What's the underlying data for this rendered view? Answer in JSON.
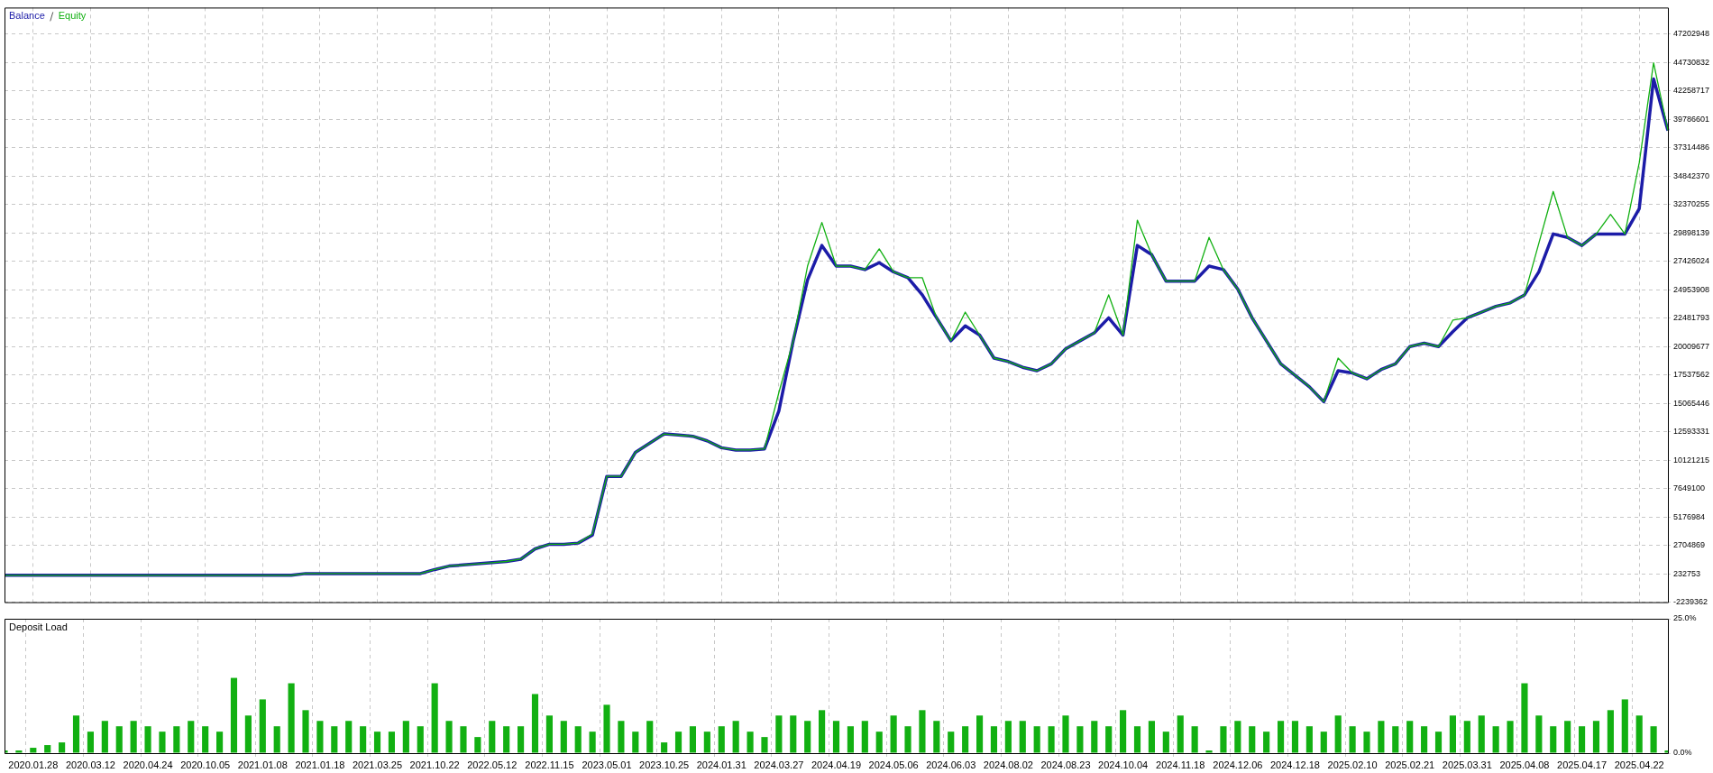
{
  "chart_data": [
    {
      "type": "line",
      "categories": [
        null,
        null,
        "2020.01.28",
        null,
        null,
        null,
        "2020.03.12",
        null,
        null,
        null,
        "2020.04.24",
        null,
        null,
        null,
        "2020.10.05",
        null,
        null,
        null,
        "2021.01.08",
        null,
        null,
        null,
        "2021.01.18",
        null,
        null,
        null,
        "2021.03.25",
        null,
        null,
        null,
        "2021.10.22",
        null,
        null,
        null,
        "2022.05.12",
        null,
        null,
        null,
        "2022.11.15",
        null,
        null,
        null,
        "2023.05.01",
        null,
        null,
        null,
        "2023.10.25",
        null,
        null,
        null,
        "2024.01.31",
        null,
        null,
        null,
        "2024.03.27",
        null,
        null,
        null,
        "2024.04.19",
        null,
        null,
        null,
        "2024.05.06",
        null,
        null,
        null,
        "2024.06.03",
        null,
        null,
        null,
        "2024.08.02",
        null,
        null,
        null,
        "2024.08.23",
        null,
        null,
        null,
        "2024.10.04",
        null,
        null,
        null,
        "2024.11.18",
        null,
        null,
        null,
        "2024.12.06",
        null,
        null,
        null,
        "2024.12.18",
        null,
        null,
        null,
        "2025.02.10",
        null,
        null,
        null,
        "2025.02.21",
        null,
        null,
        null,
        "2025.03.31",
        null,
        null,
        null,
        "2025.04.08",
        null,
        null,
        null,
        "2025.04.17",
        null,
        null,
        null,
        "2025.04.22",
        null,
        null
      ],
      "series": [
        {
          "name": "Balance",
          "color": "#1c1ca8",
          "values": [
            100000,
            100000,
            100000,
            100000,
            100000,
            100000,
            100000,
            100000,
            100000,
            100000,
            100000,
            100000,
            100000,
            100000,
            100000,
            100000,
            100000,
            100000,
            100000,
            100000,
            100000,
            250000,
            250000,
            250000,
            250000,
            250000,
            250000,
            250000,
            250000,
            250000,
            600000,
            900000,
            1000000,
            1100000,
            1200000,
            1300000,
            1500000,
            2400000,
            2800000,
            2800000,
            2900000,
            3600000,
            8700000,
            8700000,
            10800000,
            11600000,
            12400000,
            12300000,
            12200000,
            11800000,
            11200000,
            11000000,
            11000000,
            11100000,
            14400000,
            20500000,
            25800000,
            28800000,
            27000000,
            27000000,
            26700000,
            27300000,
            26500000,
            26000000,
            24500000,
            22500000,
            20500000,
            21800000,
            21000000,
            19000000,
            18700000,
            18200000,
            17900000,
            18500000,
            19800000,
            20500000,
            21200000,
            22500000,
            21000000,
            28800000,
            28000000,
            25700000,
            25700000,
            25700000,
            27000000,
            26700000,
            25000000,
            22500000,
            20500000,
            18500000,
            17500000,
            16500000,
            15200000,
            17900000,
            17700000,
            17200000,
            18000000,
            18500000,
            20000000,
            20300000,
            20000000,
            21300000,
            22500000,
            23000000,
            23500000,
            23800000,
            24500000,
            26500000,
            29800000,
            29500000,
            28800000,
            29800000,
            29800000,
            29800000,
            32000000,
            43300000,
            38800000
          ]
        },
        {
          "name": "Equity",
          "color": "#12b012",
          "values": [
            100000,
            100000,
            100000,
            100000,
            100000,
            100000,
            100000,
            100000,
            100000,
            100000,
            100000,
            100000,
            100000,
            100000,
            100000,
            100000,
            100000,
            100000,
            100000,
            100000,
            100000,
            250000,
            250000,
            250000,
            250000,
            250000,
            250000,
            250000,
            250000,
            250000,
            600000,
            900000,
            1000000,
            1100000,
            1200000,
            1300000,
            1500000,
            2400000,
            2800000,
            2800000,
            2900000,
            3700000,
            8700000,
            8700000,
            10800000,
            11600000,
            12400000,
            12300000,
            12200000,
            11800000,
            11200000,
            11000000,
            11000000,
            11100000,
            16000000,
            20500000,
            27000000,
            30800000,
            27000000,
            27000000,
            26700000,
            28500000,
            26500000,
            26000000,
            26000000,
            22500000,
            20500000,
            23000000,
            21000000,
            19000000,
            18700000,
            18200000,
            17900000,
            18500000,
            19800000,
            20500000,
            21200000,
            24500000,
            21000000,
            31000000,
            28000000,
            25700000,
            25700000,
            25700000,
            29500000,
            26700000,
            25000000,
            22500000,
            20500000,
            18500000,
            17500000,
            16500000,
            15200000,
            19000000,
            17700000,
            17200000,
            18000000,
            18500000,
            20000000,
            20300000,
            20000000,
            22300000,
            22500000,
            23000000,
            23500000,
            23800000,
            24500000,
            29000000,
            33500000,
            29500000,
            28800000,
            29800000,
            31500000,
            29800000,
            36000000,
            44700000,
            38800000
          ]
        }
      ],
      "ylim": [
        -2239362,
        49500000
      ],
      "yticks": [
        -2239362,
        232753,
        2704869,
        5176984,
        7649100,
        10121215,
        12593331,
        15065446,
        17537562,
        20009677,
        22481793,
        24953908,
        27426024,
        29898139,
        32370255,
        34842370,
        37314486,
        39786601,
        42258717,
        44730832,
        47202948
      ],
      "grid": true,
      "legend": "top left",
      "tick_labels": "y"
    },
    {
      "type": "bar",
      "title": "Deposit Load",
      "categories": [
        null,
        null,
        "2020.01.28",
        null,
        null,
        null,
        "2020.03.12",
        null,
        null,
        null,
        "2020.04.24",
        null,
        null,
        null,
        "2020.10.05",
        null,
        null,
        null,
        "2021.01.08",
        null,
        null,
        null,
        "2021.01.18",
        null,
        null,
        null,
        "2021.03.25",
        null,
        null,
        null,
        "2021.10.22",
        null,
        null,
        null,
        "2022.05.12",
        null,
        null,
        null,
        "2022.11.15",
        null,
        null,
        null,
        "2023.05.01",
        null,
        null,
        null,
        "2023.10.25",
        null,
        null,
        null,
        "2024.01.31",
        null,
        null,
        null,
        "2024.03.27",
        null,
        null,
        null,
        "2024.04.19",
        null,
        null,
        null,
        "2024.05.06",
        null,
        null,
        null,
        "2024.06.03",
        null,
        null,
        null,
        "2024.08.02",
        null,
        null,
        null,
        "2024.08.23",
        null,
        null,
        null,
        "2024.10.04",
        null,
        null,
        null,
        "2024.11.18",
        null,
        null,
        null,
        "2024.12.06",
        null,
        null,
        null,
        "2024.12.18",
        null,
        null,
        null,
        "2025.02.10",
        null,
        null,
        null,
        "2025.02.21",
        null,
        null,
        null,
        "2025.03.31",
        null,
        null,
        null,
        "2025.04.08",
        null,
        null,
        null,
        "2025.04.17",
        null,
        null,
        null,
        "2025.04.22",
        null,
        null
      ],
      "values": [
        0.5,
        0.5,
        1,
        1.5,
        2,
        7,
        4,
        6,
        5,
        6,
        5,
        4,
        5,
        6,
        5,
        4,
        14,
        7,
        10,
        5,
        13,
        8,
        6,
        5,
        6,
        5,
        4,
        4,
        6,
        5,
        13,
        6,
        5,
        3,
        6,
        5,
        5,
        11,
        7,
        6,
        5,
        4,
        9,
        6,
        4,
        6,
        2,
        4,
        5,
        4,
        5,
        6,
        4,
        3,
        7,
        7,
        6,
        8,
        6,
        5,
        6,
        4,
        7,
        5,
        8,
        6,
        4,
        5,
        7,
        5,
        6,
        6,
        5,
        5,
        7,
        5,
        6,
        5,
        8,
        5,
        6,
        4,
        7,
        5,
        0.5,
        5,
        6,
        5,
        4,
        6,
        6,
        5,
        4,
        7,
        5,
        4,
        6,
        5,
        6,
        5,
        4,
        7,
        6,
        7,
        5,
        6,
        13,
        7,
        5,
        6,
        5,
        6,
        8,
        10,
        7,
        5,
        0.5
      ],
      "color": "#12b012",
      "ylim": [
        0,
        25
      ],
      "yticks": [
        {
          "value": 0,
          "label": "0.0%"
        },
        {
          "value": 25,
          "label": "25.0%"
        }
      ],
      "grid": true
    }
  ]
}
